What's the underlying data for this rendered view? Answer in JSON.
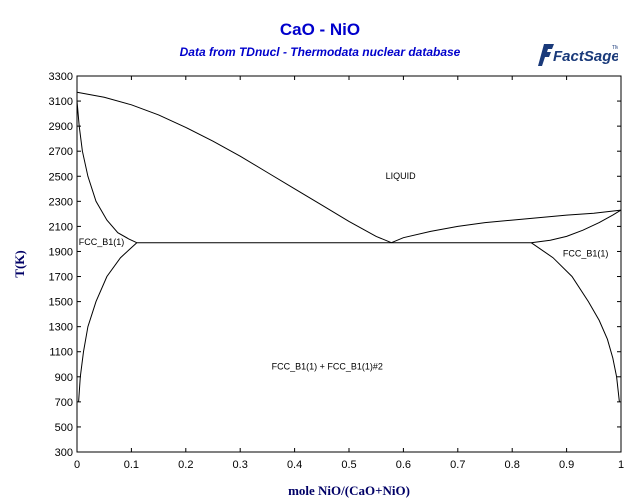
{
  "chart_data": {
    "type": "line",
    "title": "CaO - NiO",
    "subtitle": "Data from TDnucl - Thermodata nuclear database",
    "logo": "FactSage",
    "logo_mark": "TM",
    "xlabel": "mole NiO/(CaO+NiO)",
    "ylabel": "T(K)",
    "xlim": [
      0,
      1
    ],
    "ylim": [
      300,
      3300
    ],
    "xticks": [
      "0",
      "0.1",
      "0.2",
      "0.3",
      "0.4",
      "0.5",
      "0.6",
      "0.7",
      "0.8",
      "0.9",
      "1"
    ],
    "yticks": [
      "300",
      "500",
      "700",
      "900",
      "1100",
      "1300",
      "1500",
      "1700",
      "1900",
      "2100",
      "2300",
      "2500",
      "2700",
      "2900",
      "3100",
      "3300"
    ],
    "grid": false,
    "line_color": "#000000",
    "curves": [
      {
        "id": "liquidus-cao-side",
        "points": [
          [
            0,
            3170
          ],
          [
            0.05,
            3130
          ],
          [
            0.1,
            3070
          ],
          [
            0.15,
            2990
          ],
          [
            0.2,
            2890
          ],
          [
            0.25,
            2780
          ],
          [
            0.3,
            2660
          ],
          [
            0.35,
            2530
          ],
          [
            0.4,
            2400
          ],
          [
            0.45,
            2270
          ],
          [
            0.5,
            2140
          ],
          [
            0.55,
            2020
          ],
          [
            0.578,
            1970
          ]
        ]
      },
      {
        "id": "liquidus-nio-side",
        "points": [
          [
            0.578,
            1970
          ],
          [
            0.6,
            2010
          ],
          [
            0.65,
            2060
          ],
          [
            0.7,
            2100
          ],
          [
            0.75,
            2130
          ],
          [
            0.8,
            2150
          ],
          [
            0.85,
            2170
          ],
          [
            0.9,
            2190
          ],
          [
            0.95,
            2205
          ],
          [
            1,
            2230
          ]
        ]
      },
      {
        "id": "solidus-cao-side",
        "points": [
          [
            0,
            3100
          ],
          [
            0.004,
            2900
          ],
          [
            0.01,
            2700
          ],
          [
            0.02,
            2500
          ],
          [
            0.035,
            2300
          ],
          [
            0.055,
            2150
          ],
          [
            0.075,
            2050
          ],
          [
            0.095,
            2000
          ],
          [
            0.11,
            1970
          ]
        ]
      },
      {
        "id": "solidus-nio-side",
        "points": [
          [
            0.835,
            1970
          ],
          [
            0.87,
            1990
          ],
          [
            0.9,
            2020
          ],
          [
            0.93,
            2070
          ],
          [
            0.96,
            2130
          ],
          [
            0.985,
            2190
          ],
          [
            1,
            2230
          ]
        ]
      },
      {
        "id": "eutectic-line",
        "points": [
          [
            0.11,
            1970
          ],
          [
            0.835,
            1970
          ]
        ]
      },
      {
        "id": "solvus-cao-side",
        "points": [
          [
            0.11,
            1970
          ],
          [
            0.08,
            1850
          ],
          [
            0.055,
            1700
          ],
          [
            0.035,
            1500
          ],
          [
            0.02,
            1300
          ],
          [
            0.012,
            1100
          ],
          [
            0.006,
            900
          ],
          [
            0.003,
            700
          ]
        ]
      },
      {
        "id": "solvus-nio-side",
        "points": [
          [
            0.835,
            1970
          ],
          [
            0.875,
            1850
          ],
          [
            0.91,
            1700
          ],
          [
            0.94,
            1500
          ],
          [
            0.96,
            1350
          ],
          [
            0.975,
            1200
          ],
          [
            0.985,
            1050
          ],
          [
            0.992,
            900
          ],
          [
            0.997,
            700
          ]
        ]
      }
    ],
    "region_labels": [
      {
        "text": "LIQUID",
        "x": 0.595,
        "y": 2480
      },
      {
        "text": "FCC_B1(1)",
        "x": 0.045,
        "y": 1950
      },
      {
        "text": "FCC_B1(1)",
        "x": 0.935,
        "y": 1860
      },
      {
        "text": "FCC_B1(1) + FCC_B1(1)#2",
        "x": 0.46,
        "y": 960
      }
    ]
  }
}
